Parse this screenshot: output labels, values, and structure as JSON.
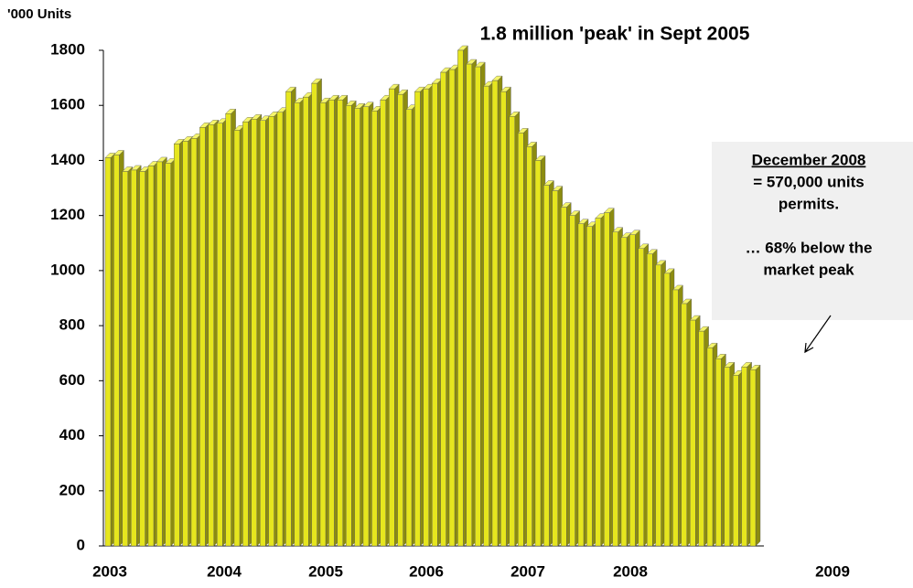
{
  "chart_data": {
    "type": "bar",
    "y_axis_label": "'000 Units",
    "title": "1.8 million 'peak' in Sept 2005",
    "year_labels": [
      "2003",
      "2004",
      "2005",
      "2006",
      "2007",
      "2008",
      "2009"
    ],
    "values": [
      1410,
      1420,
      1360,
      1365,
      1360,
      1380,
      1395,
      1390,
      1460,
      1470,
      1480,
      1520,
      1530,
      1535,
      1570,
      1510,
      1540,
      1550,
      1545,
      1560,
      1575,
      1650,
      1610,
      1630,
      1680,
      1610,
      1620,
      1620,
      1600,
      1590,
      1595,
      1580,
      1620,
      1660,
      1640,
      1585,
      1650,
      1660,
      1680,
      1720,
      1730,
      1800,
      1750,
      1740,
      1670,
      1690,
      1650,
      1560,
      1500,
      1450,
      1400,
      1310,
      1290,
      1230,
      1200,
      1170,
      1160,
      1190,
      1210,
      1140,
      1120,
      1130,
      1080,
      1060,
      1020,
      990,
      930,
      880,
      820,
      780,
      720,
      680,
      650,
      620,
      650,
      640
    ],
    "color": "#e6e61e",
    "ylim": [
      0,
      1800
    ],
    "yticks": [
      0,
      200,
      400,
      600,
      800,
      1000,
      1200,
      1400,
      1600,
      1800
    ],
    "annotation": {
      "heading": "December 2008",
      "lines": [
        "= 570,000  units",
        "permits.",
        "",
        "… 68% below the",
        "market peak"
      ]
    }
  }
}
